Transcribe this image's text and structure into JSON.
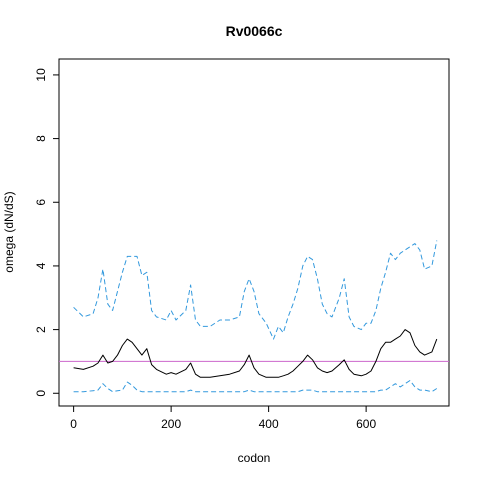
{
  "chart_data": {
    "type": "line",
    "title": "Rv0066c",
    "xlabel": "codon",
    "ylabel": "omega (dN/dS)",
    "xlim": [
      -30,
      770
    ],
    "ylim": [
      -0.4,
      10.5
    ],
    "xticks": [
      0,
      200,
      400,
      600
    ],
    "yticks": [
      0,
      2,
      4,
      6,
      8,
      10
    ],
    "grid": false,
    "colors": {
      "mean": "#000000",
      "bounds": "#3399dd",
      "reference": "#cc66cc",
      "axis": "#000000"
    },
    "reference_line": {
      "y": 1
    },
    "series": [
      {
        "role": "upper",
        "style": "dashed",
        "x": [
          0,
          20,
          40,
          50,
          60,
          70,
          80,
          90,
          100,
          110,
          120,
          130,
          140,
          150,
          160,
          170,
          190,
          200,
          210,
          230,
          240,
          250,
          260,
          280,
          300,
          320,
          340,
          350,
          360,
          370,
          380,
          395,
          410,
          420,
          430,
          440,
          450,
          460,
          470,
          480,
          490,
          500,
          510,
          520,
          530,
          545,
          555,
          565,
          575,
          590,
          600,
          610,
          620,
          630,
          640,
          650,
          660,
          670,
          680,
          690,
          700,
          710,
          720,
          735,
          745
        ],
        "y": [
          2.7,
          2.4,
          2.5,
          3.0,
          3.9,
          2.8,
          2.6,
          3.2,
          3.8,
          4.3,
          4.3,
          4.3,
          3.7,
          3.8,
          2.6,
          2.4,
          2.3,
          2.6,
          2.3,
          2.6,
          3.4,
          2.3,
          2.1,
          2.1,
          2.3,
          2.3,
          2.4,
          3.2,
          3.6,
          3.2,
          2.5,
          2.2,
          1.7,
          2.1,
          1.9,
          2.4,
          2.8,
          3.3,
          4.0,
          4.3,
          4.2,
          3.6,
          2.8,
          2.5,
          2.4,
          3.0,
          3.6,
          2.4,
          2.1,
          2.0,
          2.2,
          2.2,
          2.6,
          3.3,
          3.8,
          4.4,
          4.2,
          4.4,
          4.5,
          4.6,
          4.7,
          4.5,
          3.9,
          4.0,
          4.8
        ]
      },
      {
        "role": "mean",
        "style": "solid",
        "x": [
          0,
          20,
          40,
          50,
          60,
          70,
          80,
          90,
          100,
          110,
          120,
          130,
          140,
          150,
          160,
          170,
          190,
          200,
          210,
          230,
          240,
          250,
          260,
          280,
          300,
          320,
          340,
          350,
          360,
          370,
          380,
          395,
          410,
          420,
          430,
          440,
          450,
          460,
          470,
          480,
          490,
          500,
          510,
          520,
          530,
          545,
          555,
          565,
          575,
          590,
          600,
          610,
          620,
          630,
          640,
          650,
          660,
          670,
          680,
          690,
          700,
          710,
          720,
          735,
          745
        ],
        "y": [
          0.8,
          0.75,
          0.85,
          0.95,
          1.2,
          0.95,
          1.0,
          1.2,
          1.5,
          1.7,
          1.6,
          1.4,
          1.2,
          1.4,
          0.9,
          0.75,
          0.6,
          0.65,
          0.6,
          0.75,
          0.95,
          0.6,
          0.5,
          0.5,
          0.55,
          0.6,
          0.7,
          0.9,
          1.2,
          0.8,
          0.6,
          0.5,
          0.5,
          0.5,
          0.55,
          0.6,
          0.7,
          0.85,
          1.0,
          1.2,
          1.05,
          0.8,
          0.7,
          0.65,
          0.7,
          0.9,
          1.05,
          0.75,
          0.6,
          0.55,
          0.6,
          0.7,
          1.0,
          1.4,
          1.6,
          1.6,
          1.7,
          1.8,
          2.0,
          1.9,
          1.5,
          1.3,
          1.2,
          1.3,
          1.7
        ]
      },
      {
        "role": "lower",
        "style": "dashed",
        "x": [
          0,
          20,
          40,
          50,
          60,
          70,
          80,
          90,
          100,
          110,
          120,
          130,
          140,
          150,
          160,
          170,
          190,
          200,
          210,
          230,
          240,
          250,
          260,
          280,
          300,
          320,
          340,
          350,
          360,
          370,
          380,
          395,
          410,
          420,
          430,
          440,
          450,
          460,
          470,
          480,
          490,
          500,
          510,
          520,
          530,
          545,
          555,
          565,
          575,
          590,
          600,
          610,
          620,
          630,
          640,
          650,
          660,
          670,
          680,
          690,
          700,
          710,
          720,
          735,
          745
        ],
        "y": [
          0.05,
          0.05,
          0.08,
          0.1,
          0.3,
          0.15,
          0.05,
          0.08,
          0.1,
          0.35,
          0.25,
          0.1,
          0.05,
          0.05,
          0.05,
          0.05,
          0.05,
          0.05,
          0.05,
          0.05,
          0.1,
          0.05,
          0.05,
          0.05,
          0.05,
          0.05,
          0.05,
          0.05,
          0.1,
          0.05,
          0.05,
          0.05,
          0.05,
          0.05,
          0.05,
          0.05,
          0.05,
          0.05,
          0.1,
          0.1,
          0.1,
          0.05,
          0.05,
          0.05,
          0.05,
          0.05,
          0.05,
          0.05,
          0.05,
          0.05,
          0.05,
          0.05,
          0.05,
          0.1,
          0.1,
          0.2,
          0.3,
          0.2,
          0.3,
          0.4,
          0.2,
          0.1,
          0.1,
          0.05,
          0.15
        ]
      }
    ]
  }
}
